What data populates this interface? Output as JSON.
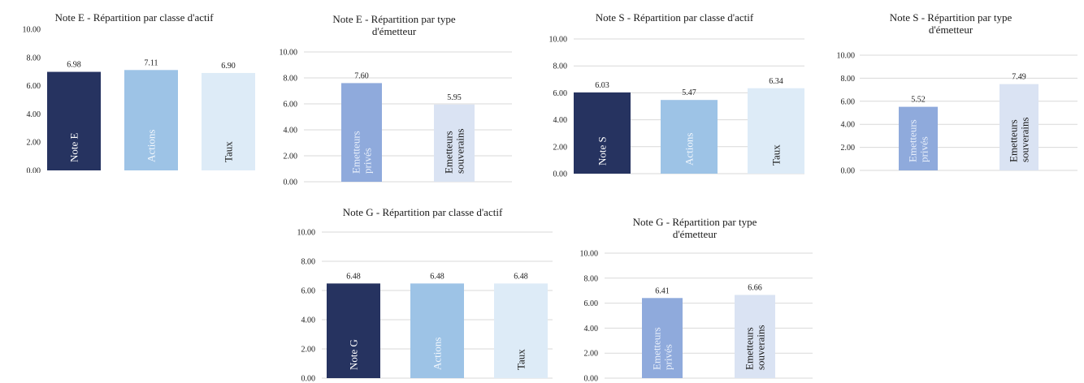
{
  "colors": {
    "note": "#263360",
    "actions": "#9dc3e6",
    "taux": "#ddebf7",
    "prives": "#8faadc",
    "souverains": "#dae3f3",
    "gridline": "#d9d9d9",
    "label_on_light": "#1a1a1a",
    "label_on_dark": "#ffffff",
    "label_on_mid": "#e9f0fb"
  },
  "chart_data": [
    {
      "type": "bar",
      "title": "Note E - Répartition par classe d'actif",
      "categories": [
        "Note E",
        "Actions",
        "Taux"
      ],
      "values": [
        6.98,
        7.11,
        6.9
      ],
      "data_labels": [
        "6.98",
        "7.11",
        "6.90"
      ],
      "yticks": [
        "0.00",
        "2.00",
        "4.00",
        "6.00",
        "8.00",
        "10.00"
      ],
      "ylim": [
        0,
        10
      ],
      "grid": false,
      "colors": [
        "#263360",
        "#9dc3e6",
        "#ddebf7"
      ],
      "label_colors": [
        "#ffffff",
        "#f2f7fd",
        "#1a1a1a"
      ]
    },
    {
      "type": "bar",
      "title": "Note E - Répartition par type\nd'émetteur",
      "categories": [
        "Emetteurs\nprivés",
        "Emetteurs\nsouverains"
      ],
      "values": [
        7.6,
        5.95
      ],
      "data_labels": [
        "7.60",
        "5.95"
      ],
      "yticks": [
        "0.00",
        "2.00",
        "4.00",
        "6.00",
        "8.00",
        "10.00"
      ],
      "ylim": [
        0,
        10
      ],
      "grid": true,
      "colors": [
        "#8faadc",
        "#dae3f3"
      ],
      "label_colors": [
        "#e9f0fb",
        "#1a1a1a"
      ]
    },
    {
      "type": "bar",
      "title": "Note S - Répartition par classe d'actif",
      "categories": [
        "Note S",
        "Actions",
        "Taux"
      ],
      "values": [
        6.03,
        5.47,
        6.34
      ],
      "data_labels": [
        "6.03",
        "5.47",
        "6.34"
      ],
      "yticks": [
        "0.00",
        "2.00",
        "4.00",
        "6.00",
        "8.00",
        "10.00"
      ],
      "ylim": [
        0,
        10
      ],
      "grid": true,
      "colors": [
        "#263360",
        "#9dc3e6",
        "#ddebf7"
      ],
      "label_colors": [
        "#ffffff",
        "#f2f7fd",
        "#1a1a1a"
      ]
    },
    {
      "type": "bar",
      "title": "Note S - Répartition par type\nd'émetteur",
      "categories": [
        "Emetteurs\nprivés",
        "Emetteurs\nsouverains"
      ],
      "values": [
        5.52,
        7.49
      ],
      "data_labels": [
        "5.52",
        "7.49"
      ],
      "yticks": [
        "0.00",
        "2.00",
        "4.00",
        "6.00",
        "8.00",
        "10.00"
      ],
      "ylim": [
        0,
        10
      ],
      "grid": true,
      "colors": [
        "#8faadc",
        "#dae3f3"
      ],
      "label_colors": [
        "#e9f0fb",
        "#1a1a1a"
      ]
    },
    {
      "type": "bar",
      "title": "Note G - Répartition par classe d'actif",
      "categories": [
        "Note G",
        "Actions",
        "Taux"
      ],
      "values": [
        6.48,
        6.48,
        6.48
      ],
      "data_labels": [
        "6.48",
        "6.48",
        "6.48"
      ],
      "yticks": [
        "0.00",
        "2.00",
        "4.00",
        "6.00",
        "8.00",
        "10.00"
      ],
      "ylim": [
        0,
        10
      ],
      "grid": true,
      "colors": [
        "#263360",
        "#9dc3e6",
        "#ddebf7"
      ],
      "label_colors": [
        "#ffffff",
        "#f2f7fd",
        "#1a1a1a"
      ]
    },
    {
      "type": "bar",
      "title": "Note G - Répartition par type\nd'émetteur",
      "categories": [
        "Emetteurs\nprivés",
        "Emetteurs\nsouverains"
      ],
      "values": [
        6.41,
        6.66
      ],
      "data_labels": [
        "6.41",
        "6.66"
      ],
      "yticks": [
        "0.00",
        "2.00",
        "4.00",
        "6.00",
        "8.00",
        "10.00"
      ],
      "ylim": [
        0,
        10
      ],
      "grid": true,
      "colors": [
        "#8faadc",
        "#dae3f3"
      ],
      "label_colors": [
        "#e9f0fb",
        "#1a1a1a"
      ]
    }
  ]
}
